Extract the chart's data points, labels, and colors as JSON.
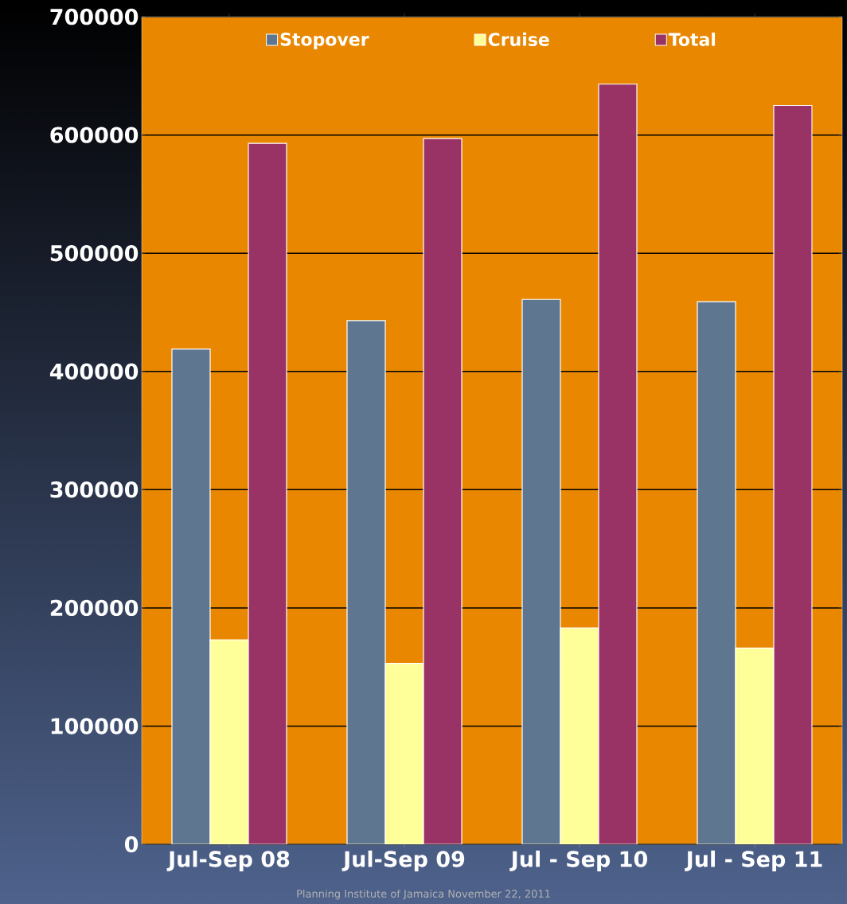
{
  "chart_data": {
    "type": "bar",
    "categories": [
      "Jul-Sep 08",
      "Jul-Sep 09",
      "Jul - Sep 10",
      "Jul - Sep 11"
    ],
    "series": [
      {
        "name": "Stopover",
        "color": "#5f7691",
        "values": [
          419000,
          443000,
          461000,
          459000
        ]
      },
      {
        "name": "Cruise",
        "color": "#ffff99",
        "values": [
          173000,
          153000,
          183000,
          166000
        ]
      },
      {
        "name": "Total",
        "color": "#993366",
        "values": [
          593000,
          597000,
          643000,
          625000
        ]
      }
    ],
    "ylim": [
      0,
      700000
    ],
    "yticks": [
      0,
      100000,
      200000,
      300000,
      400000,
      500000,
      600000,
      700000
    ],
    "grid": "y",
    "legend": "top",
    "annotations": [
      "Planning Institute of Jamaica    November 22, 2011"
    ]
  }
}
